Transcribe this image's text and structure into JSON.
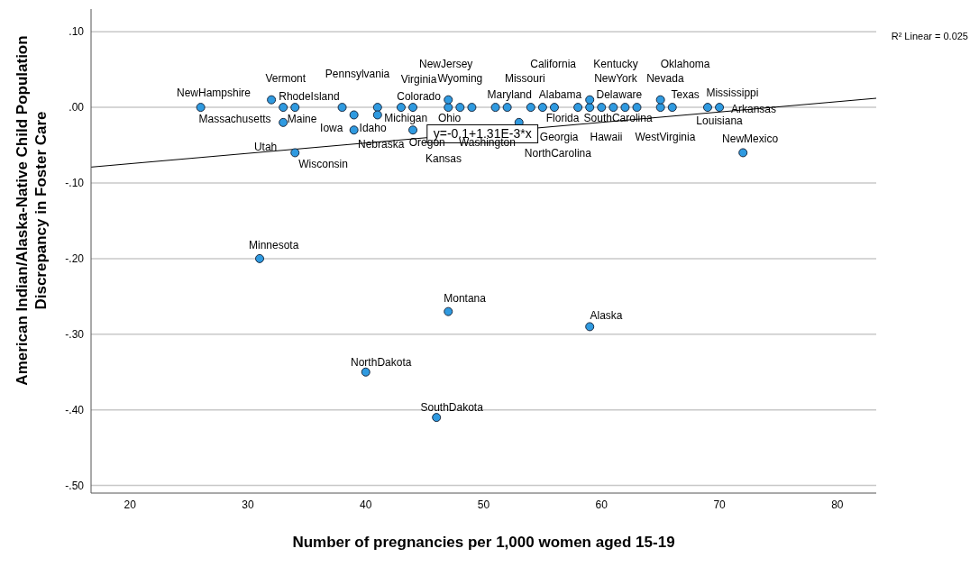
{
  "chart_data": {
    "type": "scatter",
    "xlabel": "Number of pregnancies per 1,000 women aged 15-19",
    "ylabel": "American Indian/Alaska-Native Child Population\nDiscrepancy in Foster Care",
    "xlim": [
      16.7,
      83.3
    ],
    "xticks": [
      20,
      30,
      40,
      50,
      60,
      70,
      80
    ],
    "ylim": [
      -0.51,
      0.13
    ],
    "yticks": [
      {
        "value": 0.1,
        "label": ".10"
      },
      {
        "value": 0,
        "label": ".00"
      },
      {
        "value": -0.1,
        "label": "-.10"
      },
      {
        "value": -0.2,
        "label": "-.20"
      },
      {
        "value": -0.3,
        "label": "-.30"
      },
      {
        "value": -0.4,
        "label": "-.40"
      },
      {
        "value": -0.5,
        "label": "-.50"
      }
    ],
    "grid": "y",
    "marker": "circle",
    "series": [
      {
        "color": "#2f9ae0",
        "x": [
          26,
          32,
          33,
          34,
          33,
          38,
          39,
          39,
          41,
          41,
          43,
          44,
          44,
          47,
          47,
          48,
          49,
          34,
          51,
          52,
          54,
          55,
          56,
          58,
          59,
          59,
          60,
          61,
          62,
          63,
          65,
          65,
          66,
          69,
          70,
          53,
          72,
          31,
          47,
          59,
          40,
          46
        ],
        "values": [
          0,
          0.01,
          0,
          0,
          -0.02,
          0,
          -0.01,
          -0.03,
          0,
          -0.01,
          0,
          0,
          -0.03,
          0,
          0.01,
          0,
          0,
          -0.06,
          0,
          0,
          0,
          0,
          0,
          0,
          0,
          0.01,
          0,
          0,
          0,
          0,
          0,
          0.01,
          0,
          0,
          0,
          -0.02,
          -0.06,
          -0.2,
          -0.27,
          -0.29,
          -0.35,
          -0.41
        ]
      },
      {
        "type": "line",
        "color": "#000000",
        "marker": "none",
        "x": [
          16.7,
          83.3
        ],
        "values": [
          -0.079,
          0.012
        ]
      }
    ],
    "annotations": [
      "R² Linear = 0.025",
      {
        "text": "y=-0.1+1.31E-3*x",
        "x": 49.9,
        "y": -0.035
      },
      "NewHampshire",
      "Vermont",
      "RhodeIsland",
      "Pennsylvania",
      "Massachusetts",
      "Maine",
      "Iowa",
      "Idaho",
      "Nebraska",
      "Utah",
      "Wisconsin",
      "NewJersey",
      "Virginia",
      "Colorado",
      "Michigan",
      "Ohio",
      "Oregon",
      "Washington",
      "Kansas",
      "Wyoming",
      "Missouri",
      "California",
      "Kentucky",
      "Oklahoma",
      "NewYork",
      "Nevada",
      "Maryland",
      "Alabama",
      "Delaware",
      "Texas",
      "Mississippi",
      "Arkansas",
      "Florida",
      "SouthCarolina",
      "Louisiana",
      "Georgia",
      "Hawaii",
      "WestVirginia",
      "NorthCarolina",
      "NewMexico",
      "Minnesota",
      "Montana",
      "Alaska",
      "NorthDakota",
      "SouthDakota"
    ]
  }
}
